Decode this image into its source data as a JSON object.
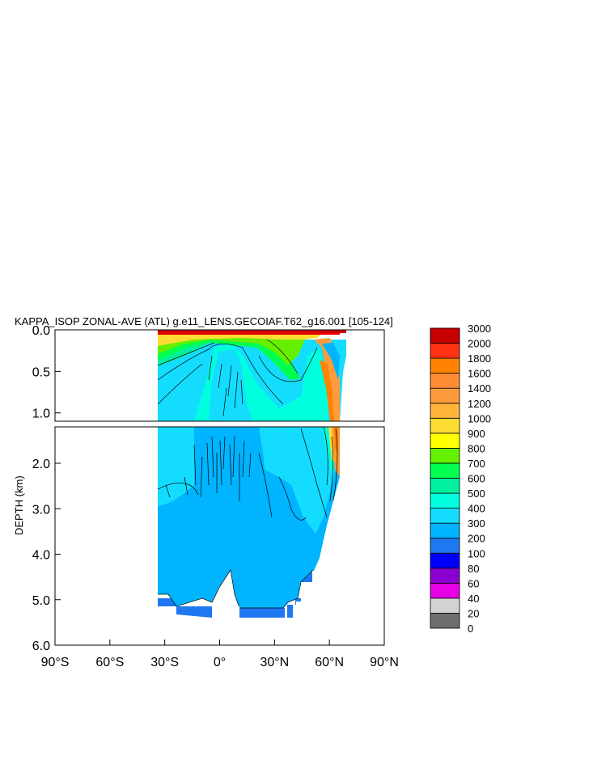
{
  "chart_data": {
    "type": "heatmap",
    "title": "KAPPA_ISOP ZONAL-AVE (ATL) g.e11_LENS.GECOIAF.T62_g16.001 [105-124]",
    "ylabel": "DEPTH (km)",
    "xlabel": "",
    "x_range": [
      -90,
      90
    ],
    "x_ticks": [
      "90°S",
      "60°S",
      "30°S",
      "0°",
      "30°N",
      "60°N",
      "90°N"
    ],
    "x_tick_values": [
      -90,
      -60,
      -30,
      0,
      30,
      60,
      90
    ],
    "upper_panel": {
      "ylim": [
        0.0,
        1.1
      ],
      "y_ticks": [
        "0.0",
        "0.5",
        "1.0"
      ],
      "y_tick_values": [
        0.0,
        0.5,
        1.0
      ]
    },
    "lower_panel": {
      "ylim": [
        1.2,
        6.0
      ],
      "y_ticks": [
        "2.0",
        "3.0",
        "4.0",
        "5.0",
        "6.0"
      ],
      "y_tick_values": [
        2.0,
        3.0,
        4.0,
        5.0,
        6.0
      ]
    },
    "colorbar": {
      "labels": [
        "0",
        "20",
        "40",
        "60",
        "80",
        "100",
        "200",
        "300",
        "400",
        "500",
        "600",
        "700",
        "800",
        "900",
        "1000",
        "1200",
        "1400",
        "1600",
        "1800",
        "2000",
        "3000"
      ],
      "colors": [
        "#6e6e6e",
        "#d2d2d2",
        "#e600e6",
        "#8c00d2",
        "#0000ff",
        "#1e78f0",
        "#00b4ff",
        "#14dcff",
        "#00ffdc",
        "#00f0a0",
        "#00ff50",
        "#64f000",
        "#ffff00",
        "#ffdc32",
        "#ffb43c",
        "#ff9b3c",
        "#ff8c32",
        "#ff8200",
        "#ff3214",
        "#e60000",
        "#c80000"
      ]
    },
    "data_extent": {
      "lat_min": -35,
      "lat_max": 70,
      "max_depth_km": 5.4
    },
    "dominant_values": {
      "deep_abyss": "200-300",
      "mid_depth": "300-400",
      "deep_north_boundary_60N": "1000-1400",
      "surface_layer": "1400-3000"
    }
  }
}
